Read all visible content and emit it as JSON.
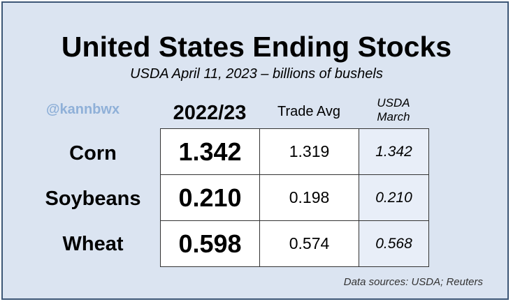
{
  "title": "United States Ending Stocks",
  "subtitle": "USDA April 11, 2023 – billions of bushels",
  "handle": "@kannbwx",
  "columns": {
    "year": "2022/23",
    "trade": "Trade Avg",
    "usda_line1": "USDA",
    "usda_line2": "March"
  },
  "rows": [
    {
      "label": "Corn",
      "year": "1.342",
      "trade": "1.319",
      "usda": "1.342"
    },
    {
      "label": "Soybeans",
      "year": "0.210",
      "trade": "0.198",
      "usda": "0.210"
    },
    {
      "label": "Wheat",
      "year": "0.598",
      "trade": "0.574",
      "usda": "0.568"
    }
  ],
  "source": "Data sources: USDA; Reuters",
  "colors": {
    "background": "#dbe4f1",
    "border": "#3c5676",
    "handle": "#8fb0d8",
    "usda_cell": "#e8eef8"
  }
}
